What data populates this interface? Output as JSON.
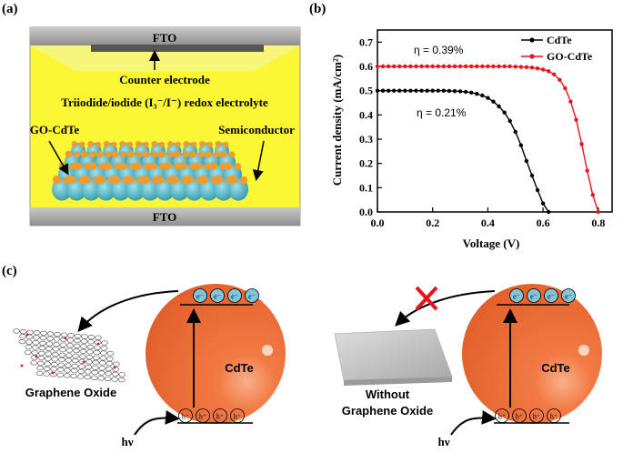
{
  "panel_a": {
    "label": "(a)",
    "top_electrode": "FTO",
    "bottom_electrode": "FTO",
    "counter_electrode": "Counter electrode",
    "electrolyte": "Triiodide/iodide (I₃⁻/I⁻) redox electrolyte",
    "left_label": "GO-CdTe",
    "right_label": "Semiconductor",
    "colors": {
      "electrolyte": "#fbf734",
      "fto": "#a9a9a9",
      "sphere": "#55b8c8",
      "dot": "#f29a2e"
    }
  },
  "panel_b": {
    "label": "(b)",
    "eff_go": "η = 0.39%",
    "eff_cdte": "η = 0.21%",
    "xlabel": "Voltage (V)",
    "ylabel": "Current density (mA/cm²)"
  },
  "chart_data": {
    "type": "line",
    "xlabel": "Voltage (V)",
    "ylabel": "Current density (mA/cm²)",
    "xlim": [
      0.0,
      0.85
    ],
    "ylim": [
      0.0,
      0.75
    ],
    "xticks": [
      "0.0",
      "0.2",
      "0.4",
      "0.6",
      "0.8"
    ],
    "yticks": [
      "0.0",
      "0.1",
      "0.2",
      "0.3",
      "0.4",
      "0.5",
      "0.6",
      "0.7"
    ],
    "legend_position": "top-right",
    "series": [
      {
        "name": "CdTe",
        "color": "#000000",
        "x": [
          0.0,
          0.02,
          0.04,
          0.06,
          0.08,
          0.1,
          0.12,
          0.14,
          0.16,
          0.18,
          0.2,
          0.22,
          0.24,
          0.26,
          0.28,
          0.3,
          0.32,
          0.34,
          0.36,
          0.38,
          0.4,
          0.42,
          0.44,
          0.46,
          0.48,
          0.5,
          0.52,
          0.54,
          0.56,
          0.58,
          0.6,
          0.62
        ],
        "y": [
          0.5,
          0.5,
          0.5,
          0.5,
          0.5,
          0.5,
          0.5,
          0.5,
          0.5,
          0.5,
          0.5,
          0.5,
          0.5,
          0.499,
          0.498,
          0.497,
          0.495,
          0.492,
          0.487,
          0.48,
          0.47,
          0.455,
          0.435,
          0.41,
          0.375,
          0.33,
          0.275,
          0.21,
          0.15,
          0.09,
          0.035,
          0.0
        ]
      },
      {
        "name": "GO-CdTe",
        "color": "#e8141b",
        "x": [
          0.0,
          0.02,
          0.04,
          0.06,
          0.08,
          0.1,
          0.12,
          0.14,
          0.16,
          0.18,
          0.2,
          0.22,
          0.24,
          0.26,
          0.28,
          0.3,
          0.32,
          0.34,
          0.36,
          0.38,
          0.4,
          0.42,
          0.44,
          0.46,
          0.48,
          0.5,
          0.52,
          0.54,
          0.56,
          0.58,
          0.6,
          0.62,
          0.64,
          0.66,
          0.68,
          0.7,
          0.72,
          0.74,
          0.76,
          0.78,
          0.8
        ],
        "y": [
          0.6,
          0.6,
          0.6,
          0.6,
          0.6,
          0.6,
          0.6,
          0.6,
          0.6,
          0.6,
          0.6,
          0.6,
          0.6,
          0.6,
          0.6,
          0.6,
          0.6,
          0.6,
          0.6,
          0.6,
          0.6,
          0.6,
          0.6,
          0.6,
          0.6,
          0.599,
          0.598,
          0.597,
          0.595,
          0.592,
          0.587,
          0.58,
          0.567,
          0.545,
          0.51,
          0.455,
          0.38,
          0.28,
          0.17,
          0.07,
          0.0
        ]
      }
    ]
  },
  "panel_c": {
    "label": "(c)",
    "left_caption": "Graphene Oxide",
    "sphere_label": "CdTe",
    "photon": "hν",
    "electron": "e⁻",
    "hole": "h⁺",
    "right_caption_1": "Without",
    "right_caption_2": "Graphene Oxide",
    "sphere_label_2": "CdTe",
    "photon_2": "hν",
    "colors": {
      "sphere": "#f27a45",
      "blocked": "#e8141b"
    }
  }
}
